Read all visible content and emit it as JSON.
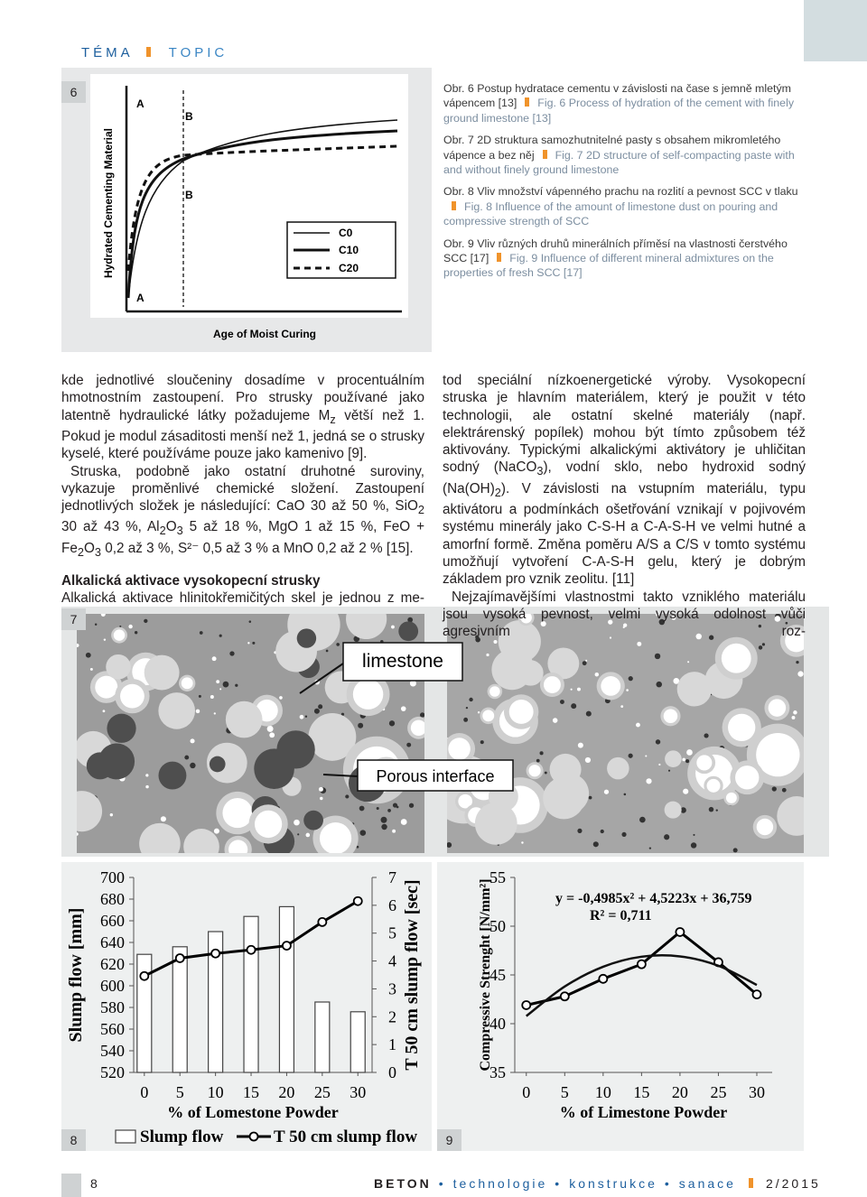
{
  "header": {
    "tema": "TÉMA",
    "topic": "TOPIC"
  },
  "fig_numbers": [
    "6",
    "7",
    "8",
    "9"
  ],
  "captions": [
    {
      "cs": "Obr. 6 Postup hydratace cementu v závislosti na čase s jemně mletým vápencem [13]",
      "en": "Fig. 6 Process of hydration of the cement with finely ground limestone [13]"
    },
    {
      "cs": "Obr. 7 2D struktura samozhutnitelné pasty s obsahem mikromletého vápence a bez něj",
      "en": "Fig. 7 2D structure of self-compacting paste with and without finely ground limestone"
    },
    {
      "cs": "Obr. 8 Vliv množství vápenného prachu na rozlití a pevnost SCC v tlaku",
      "en": "Fig. 8 Influence of the amount of limestone dust on pouring and compressive strength of SCC"
    },
    {
      "cs": "Obr. 9 Vliv různých druhů minerálních příměsí na vlastnosti čerstvého SCC [17]",
      "en": "Fig. 9 Influence of different mineral admixtures on the properties of fresh SCC [17]"
    }
  ],
  "fig6": {
    "y_label": "Hydrated Cementing Material",
    "x_label": "Age of Moist Curing",
    "markers": [
      "A",
      "B",
      "B",
      "A"
    ],
    "legend": [
      "C0",
      "C10",
      "C20"
    ]
  },
  "fig7": {
    "labels": [
      "limestone",
      "Porous interface"
    ]
  },
  "body": {
    "left": [
      [
        "kde jednotlivé sloučeniny dosadíme v procentuálním hmotnostním zastoupení. Pro strusky používané jako latentně hydraulické látky požadujeme M",
        "z",
        " větší než 1. Pokud je modul zásaditosti menší než 1, jedná se o strusky kyselé, které používáme pouze jako kamenivo [9]."
      ],
      [
        "Struska, podobně jako ostatní druhotné suroviny, vykazuje proměnlivé chemické složení. Zastoupení jednotlivých složek je následující: CaO 30 až 50 %, SiO",
        "2",
        " 30 až 43 %, Al",
        "2",
        "O",
        "3",
        " 5 až 18 %, MgO 1 až 15 %, FeO + Fe",
        "2",
        "O",
        "3",
        " 0,2 až 3 %, S²⁻ 0,5 až 3 % a MnO 0,2 až 2 % [15]."
      ]
    ],
    "heading": "Alkalická aktivace vysokopecní strusky",
    "left_end": [
      "Alkalická aktivace hlinitokřemičitých skel je jednou z me-"
    ],
    "right": [
      [
        "tod speciální nízkoenergetické výroby. Vysokopecní struska je hlavním materiálem, který je použit v této technologii, ale ostatní skelné materiály (např. elektrárenský popílek) mohou být tímto způsobem též aktivovány. Typickými alkalickými aktivátory je uhličitan sodný (NaCO",
        "3",
        "), vodní sklo, nebo hydroxid sodný (Na(OH)",
        "2",
        "). V závislosti na vstupním materiálu, typu aktivátoru a podmínkách ošetřování vznikají v pojivovém systému minerály jako C-S-H a C-A-S-H ve velmi hutné a amorfní formě. Změna poměru A/S a C/S v tomto systému umožňují vytvoření C-A-S-H gelu, který je dobrým základem pro vznik zeolitu. [11]"
      ],
      [
        "Nejzajímavějšími vlastnostmi takto vzniklého materiálu jsou vysoká pevnost, velmi vysoká odolnost vůči agresivním roz-"
      ]
    ]
  },
  "fig8": {
    "type": "bar",
    "x_label": "% of Lomestone Powder",
    "y_label": "Slump flow [mm]",
    "y2_label": "T 50 cm slump flow [sec]",
    "x": [
      0,
      5,
      10,
      15,
      20,
      25,
      30
    ],
    "xlim": [
      -1.5,
      32
    ],
    "xticks": [
      0,
      5,
      10,
      15,
      20,
      25,
      30
    ],
    "ylim": [
      520,
      700
    ],
    "yticks": [
      520,
      540,
      560,
      580,
      600,
      620,
      640,
      660,
      680,
      700
    ],
    "y2lim": [
      0,
      7
    ],
    "y2ticks": [
      0,
      1,
      2,
      3,
      4,
      5,
      6,
      7
    ],
    "series": [
      {
        "name": "Slump flow",
        "type": "bar",
        "color": "#ffffff",
        "values": [
          629,
          636,
          650,
          664,
          673,
          585,
          576
        ]
      },
      {
        "name": "T 50 cm slump flow",
        "type": "line",
        "axis": "y2",
        "color": "#000000",
        "values": [
          3.46,
          4.1,
          4.27,
          4.4,
          4.55,
          5.4,
          6.15
        ]
      }
    ]
  },
  "fig9": {
    "type": "line",
    "x_label": "% of Limestone Powder",
    "y_label": "Compressive Strenght [N/mm²]",
    "equation": "y = -0,4985x² + 4,5223x + 36,759",
    "r_squared": "R² = 0,711",
    "x": [
      0,
      5,
      10,
      15,
      20,
      25,
      30
    ],
    "xlim": [
      -1.5,
      32
    ],
    "xticks": [
      0,
      5,
      10,
      15,
      20,
      25,
      30
    ],
    "ylim": [
      35,
      55
    ],
    "yticks": [
      35,
      40,
      45,
      50,
      55
    ],
    "series": [
      {
        "color": "#000000",
        "values": [
          41.9,
          42.8,
          44.6,
          46.1,
          49.4,
          46.3,
          43.0
        ]
      }
    ],
    "trend_values": [
      40.78,
      43.81,
      45.84,
      46.87,
      46.9,
      45.94,
      43.97
    ]
  },
  "footer": {
    "page": "8",
    "magazine": "BETON",
    "sections": [
      "technologie",
      "konstrukce",
      "sanace"
    ],
    "issue": "2/2015"
  }
}
